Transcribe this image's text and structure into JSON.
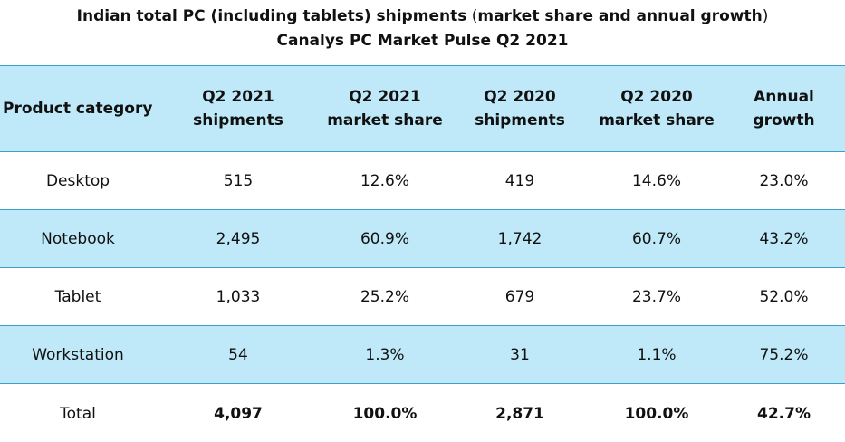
{
  "title": {
    "line1_bold_a": "Indian total PC (including tablets) shipments",
    "line1_normal": " (",
    "line1_bold_b": "market share and annual growth",
    "line1_end": ")",
    "line2": "Canalys PC Market Pulse Q2 2021"
  },
  "table": {
    "headers": [
      "Product category",
      "Q2 2021 shipments",
      "Q2 2021 market share",
      "Q2 2020 shipments",
      "Q2 2020 market share",
      "Annual growth"
    ],
    "rows": [
      {
        "category": "Desktop",
        "q2_2021_shipments": "515",
        "q2_2021_share": "12.6%",
        "q2_2020_shipments": "419",
        "q2_2020_share": "14.6%",
        "growth": "23.0%"
      },
      {
        "category": "Notebook",
        "q2_2021_shipments": "2,495",
        "q2_2021_share": "60.9%",
        "q2_2020_shipments": "1,742",
        "q2_2020_share": "60.7%",
        "growth": "43.2%"
      },
      {
        "category": "Tablet",
        "q2_2021_shipments": "1,033",
        "q2_2021_share": "25.2%",
        "q2_2020_shipments": "679",
        "q2_2020_share": "23.7%",
        "growth": "52.0%"
      },
      {
        "category": "Workstation",
        "q2_2021_shipments": "54",
        "q2_2021_share": "1.3%",
        "q2_2020_shipments": "31",
        "q2_2020_share": "1.1%",
        "growth": "75.2%"
      }
    ],
    "total": {
      "category": "Total",
      "q2_2021_shipments": "4,097",
      "q2_2021_share": "100.0%",
      "q2_2020_shipments": "2,871",
      "q2_2020_share": "100.0%",
      "growth": "42.7%"
    }
  },
  "colors": {
    "header_fill": "#bfe9f8",
    "row_shade": "#bfe9f8",
    "rule": "#3c9fc8"
  }
}
